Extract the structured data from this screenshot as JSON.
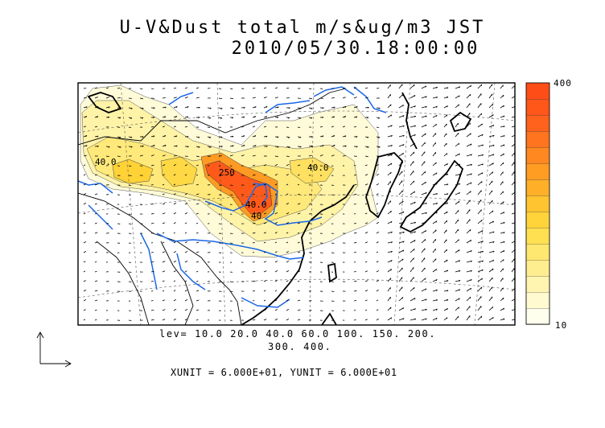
{
  "title": {
    "line1": "U-V&Dust total m/s&ug/m3 JST",
    "line2": "2010/05/30.18:00:00"
  },
  "contour_levels": {
    "line1": "lev= 10.0 20.0 40.0 60.0 100. 150. 200.",
    "line2": "300. 400."
  },
  "units_text": "XUNIT = 6.000E+01, YUNIT = 6.000E+01",
  "colorbar": {
    "max_label": "400",
    "min_label": "10",
    "colors": [
      "#ffffee",
      "#fffad0",
      "#fff4b0",
      "#ffee90",
      "#ffe870",
      "#ffe050",
      "#ffd43a",
      "#ffc430",
      "#ffb028",
      "#ff9c22",
      "#ff8820",
      "#ff741e",
      "#ff621c",
      "#ff561a",
      "#ff4d18"
    ]
  },
  "contour_labels": [
    "40.0",
    "40.0",
    "250",
    "40",
    "40.0"
  ],
  "colors": {
    "rivers": "#1a66e6",
    "coast": "#000000",
    "frame": "#000000"
  }
}
